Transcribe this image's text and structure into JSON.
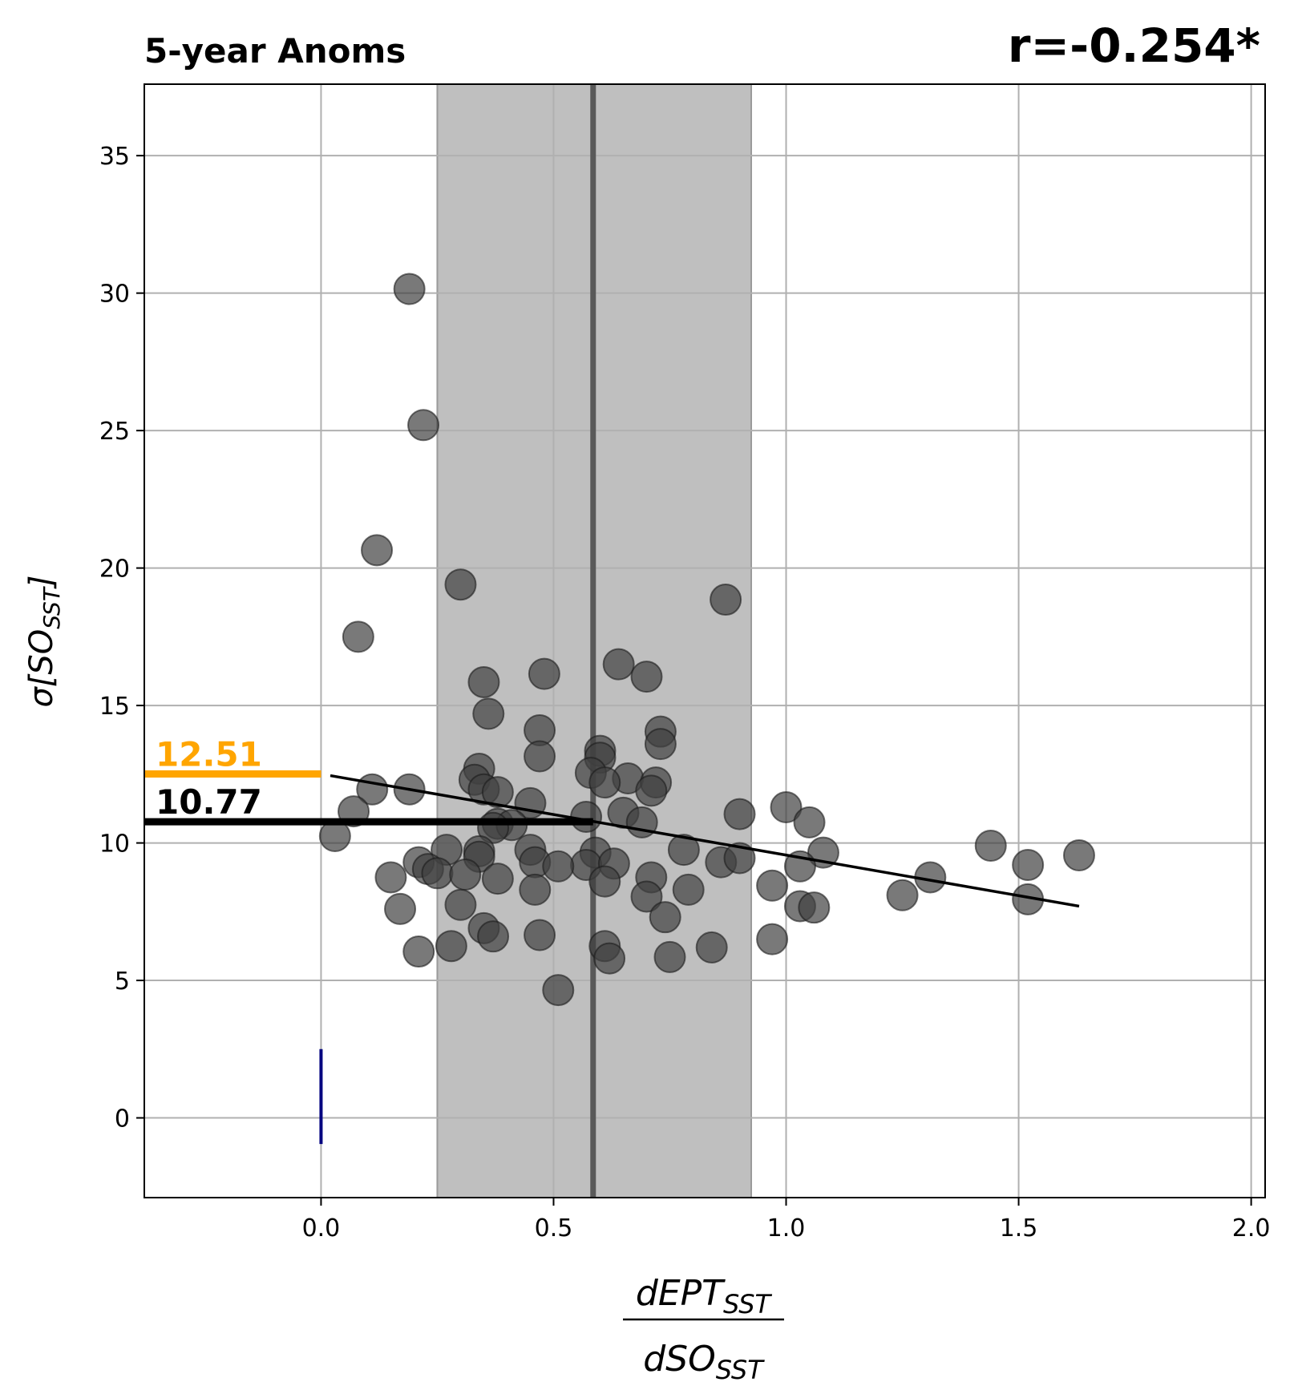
{
  "chart_data": {
    "type": "scatter",
    "title": "5-year Anoms",
    "correlation_label": "r=-0.254*",
    "xlabel": {
      "numerator_main": "dEPT",
      "numerator_sub": "SST",
      "denominator_main": "dSO",
      "denominator_sub": "SST"
    },
    "ylabel": {
      "prefix": "σ[",
      "main": "SO",
      "sub": "SST",
      "suffix": "]"
    },
    "xlim": [
      -0.38,
      2.03
    ],
    "ylim": [
      -2.9,
      37.6
    ],
    "xticks": [
      0.0,
      0.5,
      1.0,
      1.5,
      2.0
    ],
    "xtick_labels": [
      "0.0",
      "0.5",
      "1.0",
      "1.5",
      "2.0"
    ],
    "yticks": [
      0,
      5,
      10,
      15,
      20,
      25,
      30,
      35
    ],
    "ytick_labels": [
      "0",
      "5",
      "10",
      "15",
      "20",
      "25",
      "30",
      "35"
    ],
    "grid": true,
    "shaded_band": {
      "x0": 0.25,
      "x1": 0.925,
      "color": "#bfbfbf"
    },
    "center_line": {
      "x": 0.585,
      "color": "#595959"
    },
    "regression_line": {
      "x0": 0.02,
      "y0": 12.45,
      "x1": 1.63,
      "y1": 7.7,
      "color": "#000000"
    },
    "reference_levels": [
      {
        "label": "12.51",
        "y": 12.51,
        "x_end": 0.0,
        "color": "#FFA500"
      },
      {
        "label": "10.77",
        "y": 10.77,
        "x_end": 0.585,
        "color": "#000000"
      }
    ],
    "blue_marker": {
      "x": 0.0,
      "y0": -0.95,
      "y1": 2.5,
      "color": "#000080"
    },
    "marker_color": "#404040",
    "points": [
      [
        0.19,
        30.15
      ],
      [
        0.22,
        25.2
      ],
      [
        0.12,
        20.65
      ],
      [
        0.3,
        19.4
      ],
      [
        0.08,
        17.5
      ],
      [
        0.87,
        18.85
      ],
      [
        0.64,
        16.5
      ],
      [
        0.48,
        16.15
      ],
      [
        0.7,
        16.05
      ],
      [
        0.35,
        15.85
      ],
      [
        0.36,
        14.7
      ],
      [
        0.47,
        14.1
      ],
      [
        0.73,
        14.05
      ],
      [
        0.73,
        13.6
      ],
      [
        0.6,
        13.35
      ],
      [
        0.47,
        13.15
      ],
      [
        0.6,
        13.1
      ],
      [
        0.34,
        12.7
      ],
      [
        0.58,
        12.55
      ],
      [
        0.66,
        12.35
      ],
      [
        0.33,
        12.3
      ],
      [
        0.61,
        12.2
      ],
      [
        0.72,
        12.2
      ],
      [
        0.35,
        11.95
      ],
      [
        0.19,
        11.95
      ],
      [
        0.11,
        11.95
      ],
      [
        0.38,
        11.85
      ],
      [
        0.71,
        11.9
      ],
      [
        0.45,
        11.45
      ],
      [
        0.65,
        11.1
      ],
      [
        0.07,
        11.15
      ],
      [
        1.0,
        11.3
      ],
      [
        0.9,
        11.05
      ],
      [
        0.57,
        10.95
      ],
      [
        0.69,
        10.75
      ],
      [
        0.38,
        10.7
      ],
      [
        0.41,
        10.65
      ],
      [
        1.05,
        10.75
      ],
      [
        0.37,
        10.55
      ],
      [
        0.03,
        10.25
      ],
      [
        0.27,
        9.75
      ],
      [
        0.34,
        9.7
      ],
      [
        0.45,
        9.75
      ],
      [
        0.59,
        9.65
      ],
      [
        0.78,
        9.75
      ],
      [
        1.08,
        9.65
      ],
      [
        1.44,
        9.9
      ],
      [
        1.63,
        9.55
      ],
      [
        0.21,
        9.3
      ],
      [
        0.34,
        9.5
      ],
      [
        0.46,
        9.3
      ],
      [
        0.57,
        9.2
      ],
      [
        0.51,
        9.15
      ],
      [
        0.63,
        9.25
      ],
      [
        0.86,
        9.3
      ],
      [
        0.9,
        9.45
      ],
      [
        1.03,
        9.15
      ],
      [
        1.52,
        9.2
      ],
      [
        0.23,
        9.05
      ],
      [
        0.25,
        8.9
      ],
      [
        0.31,
        8.85
      ],
      [
        0.15,
        8.75
      ],
      [
        0.38,
        8.7
      ],
      [
        0.61,
        8.6
      ],
      [
        0.71,
        8.75
      ],
      [
        0.97,
        8.45
      ],
      [
        1.31,
        8.75
      ],
      [
        0.46,
        8.3
      ],
      [
        0.79,
        8.3
      ],
      [
        0.7,
        8.05
      ],
      [
        1.25,
        8.1
      ],
      [
        1.52,
        7.95
      ],
      [
        0.3,
        7.75
      ],
      [
        0.17,
        7.6
      ],
      [
        1.03,
        7.7
      ],
      [
        1.06,
        7.65
      ],
      [
        0.74,
        7.3
      ],
      [
        0.35,
        6.9
      ],
      [
        0.37,
        6.6
      ],
      [
        0.47,
        6.65
      ],
      [
        0.28,
        6.25
      ],
      [
        0.61,
        6.25
      ],
      [
        0.84,
        6.2
      ],
      [
        0.97,
        6.5
      ],
      [
        0.21,
        6.05
      ],
      [
        0.62,
        5.8
      ],
      [
        0.75,
        5.85
      ],
      [
        0.51,
        4.65
      ]
    ]
  }
}
